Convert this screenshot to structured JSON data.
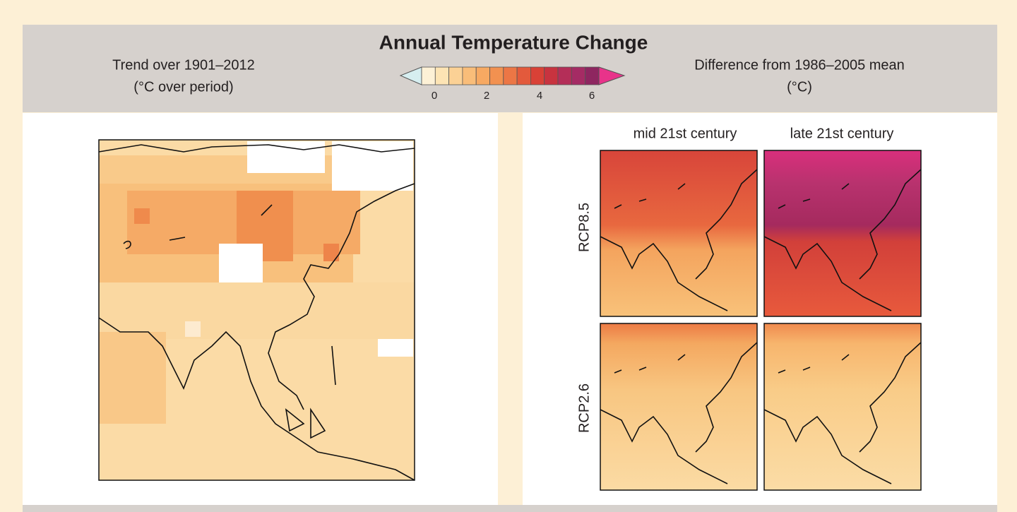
{
  "header": {
    "title": "Annual Temperature Change",
    "left_subtitle": [
      "Trend over 1901–2012",
      "(°C over period)"
    ],
    "right_subtitle": [
      "Difference from 1986–2005 mean",
      "(°C)"
    ]
  },
  "colorbar": {
    "ticks": [
      "0",
      "2",
      "4",
      "6"
    ]
  },
  "panels": {
    "columns": [
      "mid 21st century",
      "late 21st century"
    ],
    "rows": [
      "RCP8.5",
      "RCP2.6"
    ]
  }
}
